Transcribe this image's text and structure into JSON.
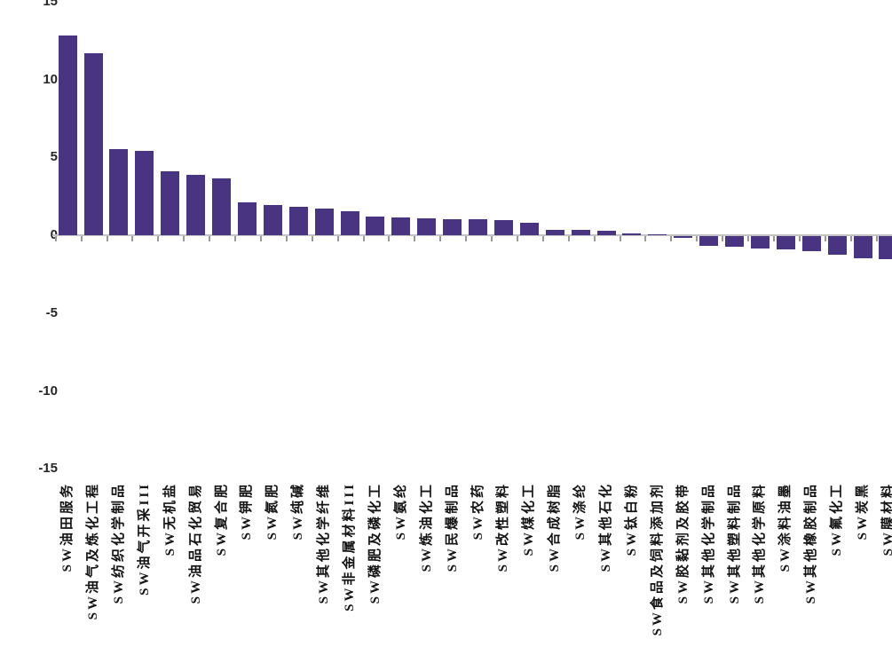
{
  "chart_data": {
    "type": "bar",
    "categories": [
      "SW油田服务",
      "SW油气及炼化工程",
      "SW纺织化学制品",
      "SW油气开采III",
      "SW无机盐",
      "SW油品石化贸易",
      "SW复合肥",
      "SW钾肥",
      "SW氮肥",
      "SW纯碱",
      "SW其他化学纤维",
      "SW非金属材料III",
      "SW磷肥及磷化工",
      "SW氨纶",
      "SW炼油化工",
      "SW民爆制品",
      "SW农药",
      "SW改性塑料",
      "SW煤化工",
      "SW合成树脂",
      "SW涤纶",
      "SW其他石化",
      "SW钛白粉",
      "SW食品及饲料添加剂",
      "SW胶黏剂及胶带",
      "SW其他化学制品",
      "SW其他塑料制品",
      "SW其他化学原料",
      "SW涂料油墨",
      "SW其他橡胶制品",
      "SW氟化工",
      "SW炭黑",
      "SW膜材料"
    ],
    "values": [
      12.8,
      11.7,
      5.5,
      5.4,
      4.1,
      3.85,
      3.65,
      2.1,
      1.95,
      1.85,
      1.7,
      1.55,
      1.2,
      1.15,
      1.1,
      1.05,
      1.0,
      0.95,
      0.8,
      0.35,
      0.33,
      0.3,
      0.12,
      0.06,
      -0.1,
      -0.6,
      -0.7,
      -0.8,
      -0.85,
      -0.95,
      -1.2,
      -1.4,
      -1.5
    ],
    "y_axis": {
      "tick_values": [
        15,
        10,
        5,
        0,
        -5,
        -10,
        -15
      ],
      "tick_labels": [
        "15",
        "10",
        "5",
        "0",
        "-5",
        "-10",
        "-15"
      ],
      "range": [
        -15,
        15
      ]
    },
    "colors": {
      "bar": "#483481",
      "axis_line": "#c3c3c3",
      "tick": "#999999",
      "label_text": "#141414",
      "axis_text": "#262626",
      "background": "#ffffff"
    },
    "grid": false,
    "legend": null,
    "xlabel": "",
    "ylabel": ""
  }
}
